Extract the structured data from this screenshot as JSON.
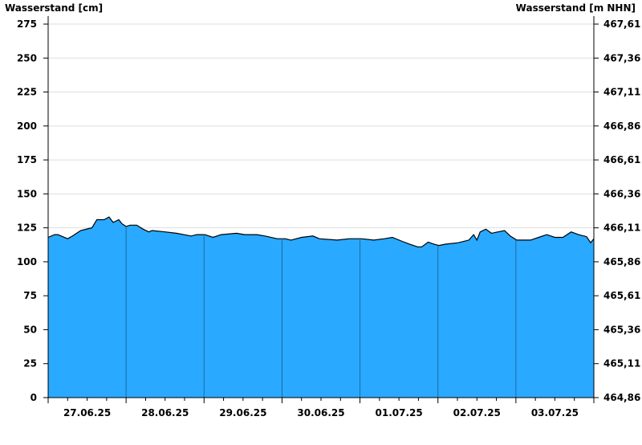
{
  "chart_data": {
    "type": "area",
    "ylabel_left": "Wasserstand [cm]",
    "ylabel_right": "Wasserstand [m NHN]",
    "ylim": [
      0,
      275
    ],
    "grid": true,
    "left_ticks": [
      "0",
      "25",
      "50",
      "75",
      "100",
      "125",
      "150",
      "175",
      "200",
      "225",
      "250",
      "275"
    ],
    "right_ticks": [
      "464,86",
      "465,11",
      "465,36",
      "465,61",
      "465,86",
      "466,11",
      "466,36",
      "466,61",
      "466,86",
      "467,11",
      "467,36",
      "467,61"
    ],
    "x_start": "27.06.25 00:00",
    "x_end": "04.07.25 00:00",
    "x_tick_labels": [
      "27.06.25",
      "28.06.25",
      "29.06.25",
      "30.06.25",
      "01.07.25",
      "02.07.25",
      "03.07.25"
    ],
    "fill_color": "#29a9ff",
    "line_color": "#000000",
    "series": [
      {
        "points": [
          [
            "27.06.25 00:00",
            118
          ],
          [
            "27.06.25 02:00",
            120
          ],
          [
            "27.06.25 03:00",
            120
          ],
          [
            "27.06.25 06:00",
            117
          ],
          [
            "27.06.25 07:30",
            119
          ],
          [
            "27.06.25 10:00",
            123
          ],
          [
            "27.06.25 12:30",
            124.5
          ],
          [
            "27.06.25 13:30",
            125
          ],
          [
            "27.06.25 15:00",
            131
          ],
          [
            "27.06.25 17:15",
            131
          ],
          [
            "27.06.25 18:45",
            133
          ],
          [
            "27.06.25 20:00",
            129
          ],
          [
            "27.06.25 21:45",
            131
          ],
          [
            "27.06.25 22:45",
            128
          ],
          [
            "28.06.25 00:00",
            126
          ],
          [
            "28.06.25 01:15",
            127
          ],
          [
            "28.06.25 03:15",
            127
          ],
          [
            "28.06.25 05:15",
            124
          ],
          [
            "28.06.25 07:00",
            122
          ],
          [
            "28.06.25 08:00",
            123
          ],
          [
            "28.06.25 12:00",
            122
          ],
          [
            "28.06.25 15:30",
            121
          ],
          [
            "28.06.25 20:00",
            119
          ],
          [
            "28.06.25 21:45",
            120
          ],
          [
            "29.06.25 00:15",
            120
          ],
          [
            "29.06.25 02:45",
            118
          ],
          [
            "29.06.25 05:15",
            120
          ],
          [
            "29.06.25 10:00",
            121
          ],
          [
            "29.06.25 12:30",
            120
          ],
          [
            "29.06.25 16:15",
            120
          ],
          [
            "29.06.25 18:45",
            119
          ],
          [
            "29.06.25 22:30",
            117
          ],
          [
            "30.06.25 01:00",
            117
          ],
          [
            "30.06.25 02:45",
            116
          ],
          [
            "30.06.25 06:00",
            118
          ],
          [
            "30.06.25 09:30",
            119
          ],
          [
            "30.06.25 11:30",
            117
          ],
          [
            "30.06.25 17:00",
            116
          ],
          [
            "30.06.25 20:45",
            117
          ],
          [
            "01.07.25 00:30",
            117
          ],
          [
            "01.07.25 04:15",
            116
          ],
          [
            "01.07.25 07:30",
            117
          ],
          [
            "01.07.25 10:00",
            118
          ],
          [
            "01.07.25 13:00",
            115
          ],
          [
            "01.07.25 15:15",
            113
          ],
          [
            "01.07.25 17:45",
            111
          ],
          [
            "01.07.25 19:00",
            111
          ],
          [
            "01.07.25 21:00",
            114.5
          ],
          [
            "01.07.25 22:45",
            113
          ],
          [
            "02.07.25 00:15",
            112
          ],
          [
            "02.07.25 02:30",
            113
          ],
          [
            "02.07.25 06:15",
            114
          ],
          [
            "02.07.25 09:30",
            116
          ],
          [
            "02.07.25 11:00",
            120
          ],
          [
            "02.07.25 12:00",
            116
          ],
          [
            "02.07.25 13:00",
            122
          ],
          [
            "02.07.25 14:45",
            124
          ],
          [
            "02.07.25 16:30",
            121
          ],
          [
            "02.07.25 18:30",
            122
          ],
          [
            "02.07.25 20:30",
            123
          ],
          [
            "02.07.25 22:15",
            119
          ],
          [
            "03.07.25 00:15",
            116
          ],
          [
            "03.07.25 04:30",
            116
          ],
          [
            "03.07.25 07:00",
            118
          ],
          [
            "03.07.25 09:30",
            120
          ],
          [
            "03.07.25 12:00",
            118
          ],
          [
            "03.07.25 14:30",
            118
          ],
          [
            "03.07.25 17:00",
            122
          ],
          [
            "03.07.25 19:15",
            120
          ],
          [
            "03.07.25 21:45",
            118.5
          ],
          [
            "03.07.25 23:00",
            114
          ],
          [
            "04.07.25 00:00",
            117
          ]
        ]
      }
    ]
  }
}
